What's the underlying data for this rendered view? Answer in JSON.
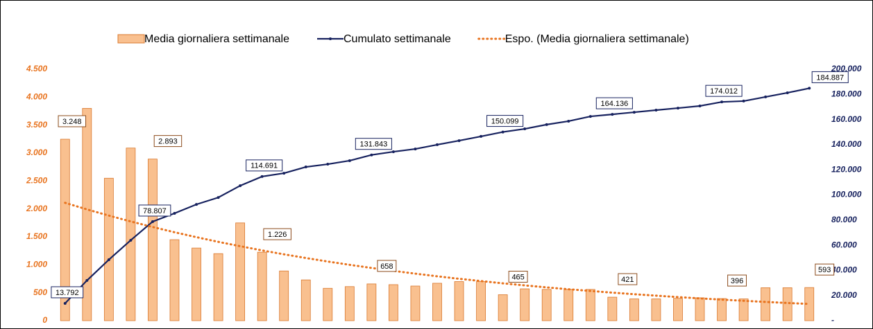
{
  "chart_data": {
    "type": "bar_line",
    "categories": [
      null,
      null,
      null,
      null,
      null,
      null,
      null,
      null,
      null,
      null,
      null,
      null,
      null,
      null,
      null,
      null,
      null,
      null,
      null,
      null,
      null,
      null,
      null,
      null,
      null,
      null,
      null,
      null,
      null,
      null,
      null,
      null,
      null,
      null,
      null
    ],
    "series": [
      {
        "name": "Media giornaliera settimanale",
        "color": "#f9c08f",
        "stroke": "#d9782e",
        "kind": "bar",
        "axis": "y",
        "values": [
          3248,
          3800,
          2550,
          3090,
          2893,
          1450,
          1300,
          1200,
          1750,
          1226,
          890,
          730,
          580,
          610,
          658,
          645,
          620,
          670,
          700,
          700,
          465,
          570,
          560,
          560,
          560,
          421,
          390,
          390,
          400,
          410,
          396,
          390,
          590,
          590,
          593
        ],
        "value_labels": [
          "3.248",
          null,
          null,
          null,
          "2.893",
          null,
          null,
          null,
          null,
          "1.226",
          null,
          null,
          null,
          null,
          "658",
          null,
          null,
          null,
          null,
          null,
          "465",
          null,
          null,
          null,
          null,
          "421",
          null,
          null,
          null,
          null,
          "396",
          null,
          null,
          null,
          "593"
        ]
      },
      {
        "name": "Cumulato settimanale",
        "color": "#16215e",
        "kind": "line",
        "axis": "y2",
        "values": [
          13792,
          32000,
          48500,
          64000,
          78807,
          85400,
          92500,
          98000,
          107400,
          114691,
          117300,
          122300,
          124500,
          127300,
          131843,
          134400,
          136600,
          140000,
          143200,
          146600,
          150099,
          152600,
          156000,
          158700,
          162500,
          164136,
          165800,
          167500,
          169100,
          170800,
          174012,
          174700,
          178000,
          181300,
          184887
        ],
        "value_labels": [
          "13.792",
          null,
          null,
          null,
          "78.807",
          null,
          null,
          null,
          null,
          "114.691",
          null,
          null,
          null,
          null,
          "131.843",
          null,
          null,
          null,
          null,
          null,
          "150.099",
          null,
          null,
          null,
          null,
          "164.136",
          null,
          null,
          null,
          null,
          "174.012",
          null,
          null,
          null,
          "184.887"
        ]
      },
      {
        "name": "Espo. (Media giornaliera settimanale)",
        "color": "#e8731e",
        "kind": "trend",
        "axis": "y",
        "values": [
          2110,
          1992,
          1881,
          1776,
          1677,
          1583,
          1495,
          1411,
          1333,
          1258,
          1188,
          1122,
          1059,
          1000,
          944,
          892,
          842,
          795,
          750,
          709,
          669,
          632,
          596,
          563,
          532,
          502,
          474,
          448,
          423,
          399,
          377,
          356,
          336,
          317,
          300
        ]
      }
    ],
    "ylim": [
      0,
      4500
    ],
    "yticks": [
      0,
      500,
      {
        "value": 1000,
        "label": "1.000"
      },
      {
        "value": 1500,
        "label": "1.500"
      },
      {
        "value": 2000,
        "label": "2.000"
      },
      {
        "value": 2500,
        "label": "2.500"
      },
      {
        "value": 3000,
        "label": "3.000"
      },
      {
        "value": 3500,
        "label": "3.500"
      },
      {
        "value": 4000,
        "label": "4.000"
      },
      {
        "value": 4500,
        "label": "4.500"
      }
    ],
    "y2lim": [
      0,
      200000
    ],
    "y2ticks": [
      {
        "value": 0,
        "label": "-"
      },
      {
        "value": 20000,
        "label": "20.000"
      },
      {
        "value": 40000,
        "label": "40.000"
      },
      {
        "value": 60000,
        "label": "60.000"
      },
      {
        "value": 80000,
        "label": "80.000"
      },
      {
        "value": 100000,
        "label": "100.000"
      },
      {
        "value": 120000,
        "label": "120.000"
      },
      {
        "value": 140000,
        "label": "140.000"
      },
      {
        "value": 160000,
        "label": "160.000"
      },
      {
        "value": 180000,
        "label": "180.000"
      },
      {
        "value": 200000,
        "label": "200.000"
      }
    ],
    "legend": "top"
  }
}
